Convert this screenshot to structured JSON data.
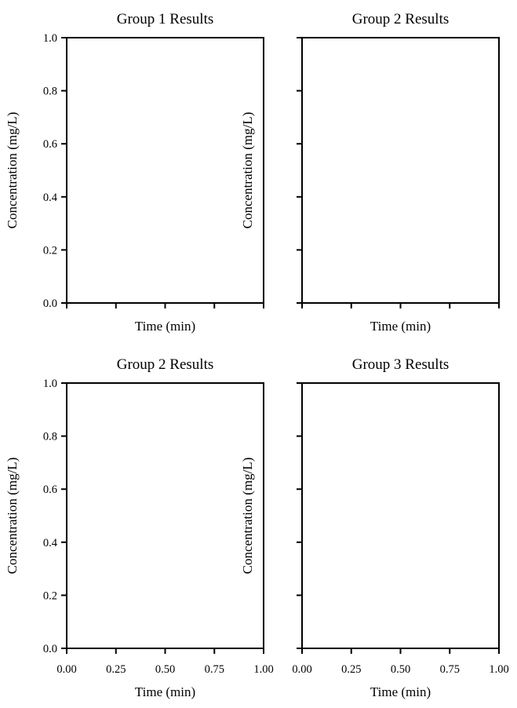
{
  "chart_data": [
    {
      "type": "line",
      "title": "Group 1 Results",
      "xlabel": "Time (min)",
      "ylabel": "Concentration (mg/L)",
      "xlim": [
        0,
        1
      ],
      "ylim": [
        0,
        1
      ],
      "x_ticks": [
        0,
        0.25,
        0.5,
        0.75,
        1
      ],
      "y_ticks": [
        0,
        0.2,
        0.4,
        0.6,
        0.8,
        1
      ],
      "x_tick_labels": [],
      "y_tick_labels": [
        "0.0",
        "0.2",
        "0.4",
        "0.6",
        "0.8",
        "1.0"
      ],
      "grid": false,
      "series": []
    },
    {
      "type": "line",
      "title": "Group 2 Results",
      "xlabel": "Time (min)",
      "ylabel": "Concentration (mg/L)",
      "xlim": [
        0,
        1
      ],
      "ylim": [
        0,
        1
      ],
      "x_ticks": [
        0,
        0.25,
        0.5,
        0.75,
        1
      ],
      "y_ticks": [
        0,
        0.2,
        0.4,
        0.6,
        0.8,
        1
      ],
      "x_tick_labels": [],
      "y_tick_labels": [],
      "grid": false,
      "series": []
    },
    {
      "type": "line",
      "title": "Group 2 Results",
      "xlabel": "Time (min)",
      "ylabel": "Concentration (mg/L)",
      "xlim": [
        0,
        1
      ],
      "ylim": [
        0,
        1
      ],
      "x_ticks": [
        0,
        0.25,
        0.5,
        0.75,
        1
      ],
      "y_ticks": [
        0,
        0.2,
        0.4,
        0.6,
        0.8,
        1
      ],
      "x_tick_labels": [
        "0.00",
        "0.25",
        "0.50",
        "0.75",
        "1.00"
      ],
      "y_tick_labels": [
        "0.0",
        "0.2",
        "0.4",
        "0.6",
        "0.8",
        "1.0"
      ],
      "grid": false,
      "series": []
    },
    {
      "type": "line",
      "title": "Group 3 Results",
      "xlabel": "Time (min)",
      "ylabel": "Concentration (mg/L)",
      "xlim": [
        0,
        1
      ],
      "ylim": [
        0,
        1
      ],
      "x_ticks": [
        0,
        0.25,
        0.5,
        0.75,
        1
      ],
      "y_ticks": [
        0,
        0.2,
        0.4,
        0.6,
        0.8,
        1
      ],
      "x_tick_labels": [
        "0.00",
        "0.25",
        "0.50",
        "0.75",
        "1.00"
      ],
      "y_tick_labels": [],
      "grid": false,
      "series": []
    }
  ],
  "colors": {
    "axes": "#000000",
    "background": "#ffffff"
  }
}
